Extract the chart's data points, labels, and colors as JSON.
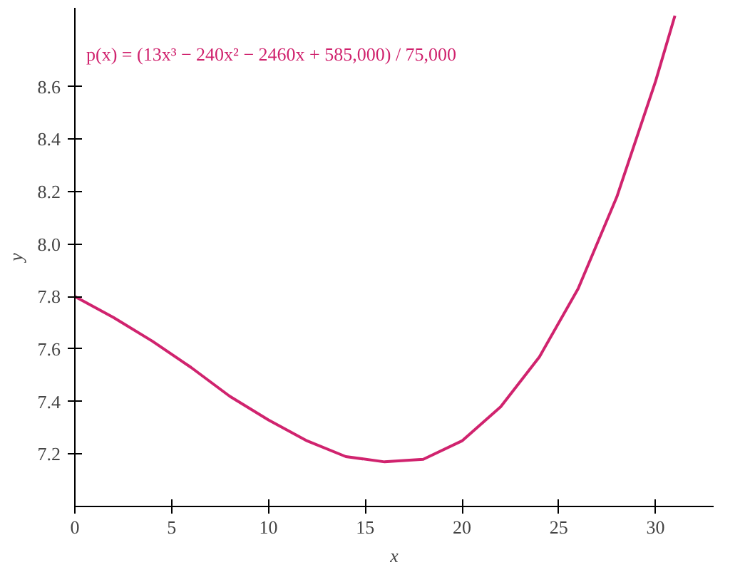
{
  "chart_data": {
    "type": "line",
    "xlabel": "x",
    "ylabel": "y",
    "x": [
      0,
      2,
      4,
      6,
      8,
      10,
      12,
      14,
      16,
      18,
      20,
      22,
      24,
      26,
      28,
      30,
      31
    ],
    "series": [
      {
        "color": "#d0236e",
        "values": [
          7.8,
          7.72,
          7.63,
          7.53,
          7.42,
          7.33,
          7.25,
          7.19,
          7.17,
          7.18,
          7.25,
          7.38,
          7.57,
          7.83,
          8.18,
          8.62,
          8.87
        ]
      }
    ],
    "xlim": [
      0,
      33
    ],
    "ylim": [
      7.0,
      8.9
    ],
    "xticks": [
      0,
      5,
      10,
      15,
      20,
      25,
      30
    ],
    "yticks": [
      {
        "value": 7.2,
        "label": "7.2"
      },
      {
        "value": 7.4,
        "label": "7.4"
      },
      {
        "value": 7.6,
        "label": "7.6"
      },
      {
        "value": 7.8,
        "label": "7.8"
      },
      {
        "value": 8.0,
        "label": "8.0"
      },
      {
        "value": 8.2,
        "label": "8.2"
      },
      {
        "value": 8.4,
        "label": "8.4"
      },
      {
        "value": 8.6,
        "label": "8.6"
      }
    ],
    "annotations": [
      "p(x) = (13x³ − 240x² − 2460x + 585,000) / 75,000"
    ],
    "grid": false,
    "marker": "none",
    "line_style": "solid"
  }
}
